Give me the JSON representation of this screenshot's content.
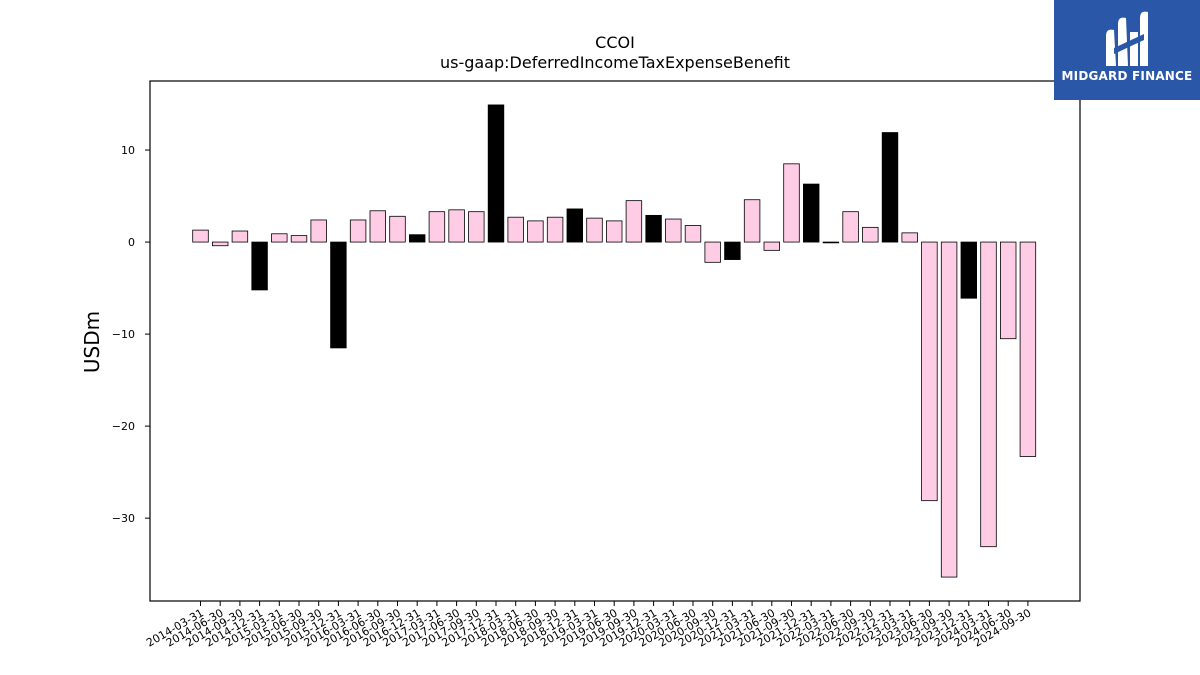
{
  "logo": {
    "text": "MIDGARD FINANCE",
    "bg_color": "#2b57a8"
  },
  "chart_data": {
    "type": "bar",
    "title": "CCOI",
    "subtitle": "us-gaap:DeferredIncomeTaxExpenseBenefit",
    "xlabel": "",
    "ylabel": "USDm",
    "ylim": [
      -39,
      17.5
    ],
    "yticks": [
      10,
      0,
      -10,
      -20,
      -30
    ],
    "ytick_labels": [
      "10",
      "0",
      "−10",
      "−20",
      "−30"
    ],
    "grid": false,
    "colors": {
      "pink": "#ffcce6",
      "black": "#000000"
    },
    "categories": [
      "2014-03-31",
      "2014-06-30",
      "2014-09-30",
      "2014-12-31",
      "2015-03-31",
      "2015-06-30",
      "2015-09-30",
      "2015-12-31",
      "2016-03-31",
      "2016-06-30",
      "2016-09-30",
      "2016-12-31",
      "2017-03-31",
      "2017-06-30",
      "2017-09-30",
      "2017-12-31",
      "2018-03-31",
      "2018-06-30",
      "2018-09-30",
      "2018-12-31",
      "2019-03-31",
      "2019-06-30",
      "2019-09-30",
      "2019-12-31",
      "2020-03-31",
      "2020-06-30",
      "2020-09-30",
      "2020-12-31",
      "2021-03-31",
      "2021-06-30",
      "2021-09-30",
      "2021-12-31",
      "2022-03-31",
      "2022-06-30",
      "2022-09-30",
      "2022-12-31",
      "2023-03-31",
      "2023-06-30",
      "2023-09-30",
      "2023-12-31",
      "2024-03-31",
      "2024-06-30",
      "2024-09-30"
    ],
    "values": [
      1.3,
      -0.4,
      1.2,
      -5.2,
      0.9,
      0.7,
      2.4,
      -11.5,
      2.4,
      3.4,
      2.8,
      0.8,
      3.3,
      3.5,
      3.3,
      14.9,
      2.7,
      2.3,
      2.7,
      3.6,
      2.6,
      2.3,
      4.5,
      2.9,
      2.5,
      1.8,
      -2.2,
      -1.9,
      4.6,
      -0.9,
      8.5,
      6.3,
      0.0,
      3.3,
      1.6,
      11.9,
      1.0,
      -28.1,
      -36.4,
      -6.1,
      -33.1,
      -10.5,
      -23.3
    ],
    "bar_colors": [
      "pink",
      "pink",
      "pink",
      "black",
      "pink",
      "pink",
      "pink",
      "black",
      "pink",
      "pink",
      "pink",
      "black",
      "pink",
      "pink",
      "pink",
      "black",
      "pink",
      "pink",
      "pink",
      "black",
      "pink",
      "pink",
      "pink",
      "black",
      "pink",
      "pink",
      "pink",
      "black",
      "pink",
      "pink",
      "pink",
      "black",
      "pink",
      "pink",
      "pink",
      "black",
      "pink",
      "pink",
      "pink",
      "black",
      "pink",
      "pink",
      "pink"
    ]
  }
}
